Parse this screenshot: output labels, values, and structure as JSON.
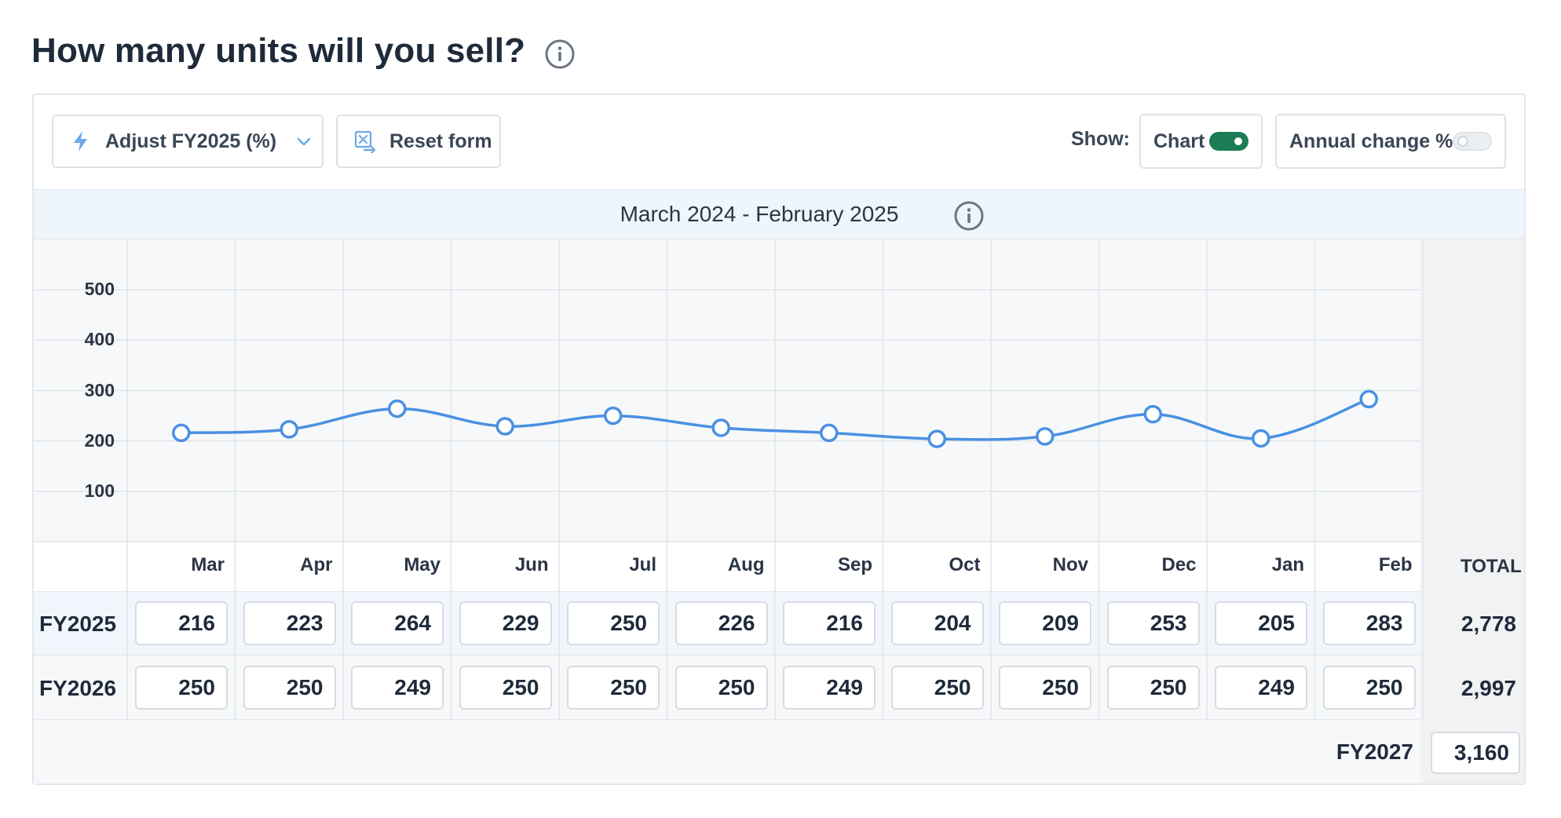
{
  "header": {
    "title": "How many units will you sell?"
  },
  "toolbar": {
    "adjust_label": "Adjust FY2025 (%)",
    "reset_label": "Reset form",
    "show_label": "Show:",
    "chart_toggle_label": "Chart",
    "chart_toggle_on": true,
    "annual_toggle_label": "Annual change %",
    "annual_toggle_on": false
  },
  "period": {
    "label": "March 2024 - February 2025"
  },
  "colors": {
    "line": "#4a90e2",
    "toggle_on": "#1b7c55",
    "header_bg": "#eef5fb"
  },
  "table": {
    "months": [
      "Mar",
      "Apr",
      "May",
      "Jun",
      "Jul",
      "Aug",
      "Sep",
      "Oct",
      "Nov",
      "Dec",
      "Jan",
      "Feb"
    ],
    "total_header": "TOTAL",
    "rows": [
      {
        "label": "FY2025",
        "values": [
          "216",
          "223",
          "264",
          "229",
          "250",
          "226",
          "216",
          "204",
          "209",
          "253",
          "205",
          "283"
        ],
        "total": "2,778"
      },
      {
        "label": "FY2026",
        "values": [
          "250",
          "250",
          "249",
          "250",
          "250",
          "250",
          "249",
          "250",
          "250",
          "250",
          "249",
          "250"
        ],
        "total": "2,997"
      }
    ],
    "fy2027": {
      "label": "FY2027",
      "value": "3,160"
    }
  },
  "chart_data": {
    "type": "line",
    "categories": [
      "Mar",
      "Apr",
      "May",
      "Jun",
      "Jul",
      "Aug",
      "Sep",
      "Oct",
      "Nov",
      "Dec",
      "Jan",
      "Feb"
    ],
    "series": [
      {
        "values": [
          216,
          223,
          264,
          229,
          250,
          226,
          216,
          204,
          209,
          253,
          205,
          283
        ]
      }
    ],
    "yticks": [
      100,
      200,
      300,
      400,
      500
    ],
    "ylim": [
      0,
      600
    ],
    "grid": true,
    "legend": "none"
  }
}
